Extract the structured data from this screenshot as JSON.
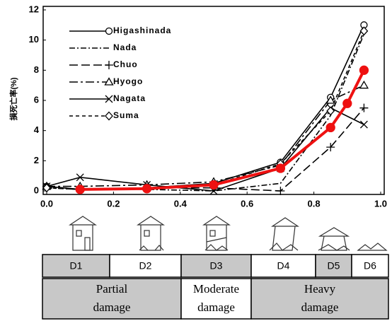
{
  "chart_data": {
    "type": "line",
    "ylabel": "損死亡率(%)",
    "xlim": [
      0,
      1
    ],
    "ylim": [
      0,
      12
    ],
    "xticks": [
      {
        "value": 0,
        "label": "0.0"
      },
      {
        "value": 0.2,
        "label": "0.2"
      },
      {
        "value": 0.4,
        "label": "0.4"
      },
      {
        "value": 0.6,
        "label": "0.6"
      },
      {
        "value": 0.8,
        "label": "0.8"
      },
      {
        "value": 1,
        "label": "1.0"
      }
    ],
    "yticks": [
      0,
      2,
      4,
      6,
      8,
      10,
      12
    ],
    "legend": "upper left",
    "series": [
      {
        "name": "Higashinada",
        "color": "#000000",
        "marker": "circle",
        "dash": "solid",
        "x": [
          0,
          0.1,
          0.3,
          0.5,
          0.7,
          0.85,
          0.95
        ],
        "values": [
          0.3,
          0.1,
          0.2,
          0.5,
          1.9,
          6.2,
          11.0
        ]
      },
      {
        "name": "Nada",
        "color": "#000000",
        "marker": "none",
        "dash": "dashdot",
        "x": [
          0,
          0.1,
          0.3,
          0.5,
          0.7,
          0.85,
          0.95
        ],
        "values": [
          0.2,
          0.1,
          0.1,
          0.0,
          0.5,
          5.0,
          10.4
        ]
      },
      {
        "name": "Chuo",
        "color": "#000000",
        "marker": "plus",
        "dash": "longdash",
        "x": [
          0,
          0.1,
          0.3,
          0.5,
          0.7,
          0.85,
          0.95
        ],
        "values": [
          0.3,
          0.1,
          0.2,
          0.2,
          0.0,
          2.9,
          5.5
        ]
      },
      {
        "name": "Hyogo",
        "color": "#000000",
        "marker": "triangle",
        "dash": "longdashdot",
        "x": [
          0,
          0.1,
          0.3,
          0.5,
          0.7,
          0.85,
          0.95
        ],
        "values": [
          0.3,
          0.3,
          0.4,
          0.6,
          1.7,
          6.0,
          7.0
        ]
      },
      {
        "name": "Nagata",
        "color": "#000000",
        "marker": "cross",
        "dash": "solid",
        "x": [
          0,
          0.1,
          0.3,
          0.5,
          0.7,
          0.85,
          0.95
        ],
        "values": [
          0.3,
          0.9,
          0.4,
          0.0,
          1.5,
          5.5,
          4.4
        ]
      },
      {
        "name": "Suma",
        "color": "#000000",
        "marker": "diamond",
        "dash": "dash",
        "x": [
          0,
          0.1,
          0.3,
          0.5,
          0.7,
          0.85,
          0.95
        ],
        "values": [
          0.2,
          0.1,
          0.2,
          0.4,
          1.8,
          5.3,
          10.6
        ]
      },
      {
        "color": "#ee1111",
        "marker": "dot",
        "dash": "solid",
        "x": [
          0.1,
          0.3,
          0.5,
          0.7,
          0.85,
          0.9,
          0.95
        ],
        "values": [
          0.1,
          0.15,
          0.4,
          1.5,
          4.2,
          5.8,
          8.0
        ]
      }
    ]
  },
  "damage_scale": {
    "levels": [
      {
        "label": "D1",
        "shade": true
      },
      {
        "label": "D2",
        "shade": false
      },
      {
        "label": "D3",
        "shade": true
      },
      {
        "label": "D4",
        "shade": false
      },
      {
        "label": "D5",
        "shade": true
      },
      {
        "label": "D6",
        "shade": false
      }
    ],
    "groups": [
      {
        "lines": [
          "Partial",
          "damage"
        ],
        "shade": true
      },
      {
        "lines": [
          "Moderate",
          "damage"
        ],
        "shade": false
      },
      {
        "lines": [
          "Heavy",
          "damage"
        ],
        "shade": true
      }
    ]
  }
}
